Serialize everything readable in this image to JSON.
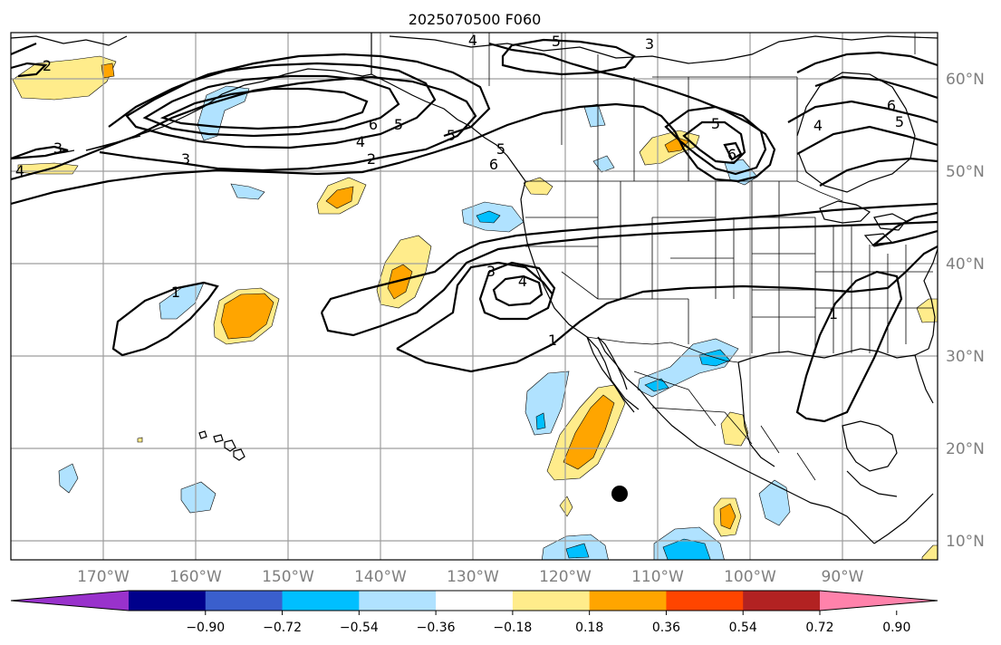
{
  "title": "2025070500 F060",
  "map": {
    "lat_labels": [
      "60°N",
      "50°N",
      "40°N",
      "30°N",
      "20°N",
      "10°N"
    ],
    "lon_labels": [
      "170°W",
      "160°W",
      "150°W",
      "140°W",
      "130°W",
      "120°W",
      "110°W",
      "100°W",
      "90°W"
    ],
    "contour_labels": [
      "2",
      "3",
      "4",
      "5",
      "6",
      "3",
      "1",
      "3",
      "4",
      "1",
      "4",
      "5",
      "3",
      "5",
      "6",
      "5",
      "6",
      "5",
      "4",
      "2",
      "1",
      "4",
      "6",
      "5"
    ]
  },
  "colorbar": {
    "colors": [
      "#9932cc",
      "#00008b",
      "#3a5fcd",
      "#00bfff",
      "#b0e2ff",
      "#ffffff",
      "#ffec8b",
      "#ffa500",
      "#ff4500",
      "#b22222",
      "#ff82ab"
    ],
    "tick_labels": [
      "−0.90",
      "−0.72",
      "−0.54",
      "−0.36",
      "−0.18",
      "0.18",
      "0.36",
      "0.54",
      "0.72",
      "0.90"
    ]
  }
}
